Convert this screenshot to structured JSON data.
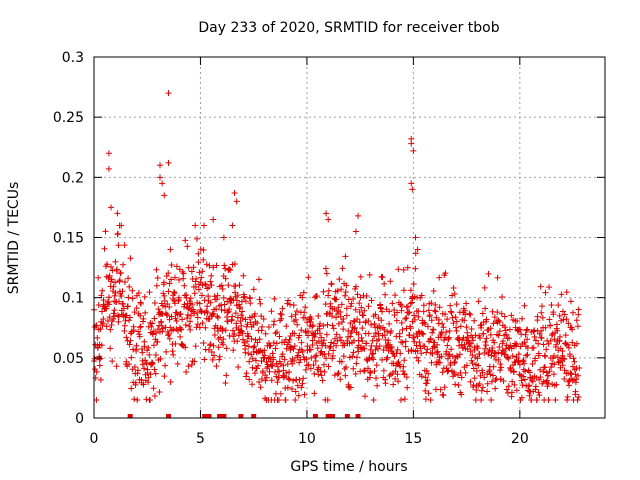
{
  "chart_data": {
    "type": "scatter",
    "title": "Day 233 of 2020, SRMTID for receiver tbob",
    "xlabel": "GPS time / hours",
    "ylabel": "SRMTID / TECUs",
    "xlim": [
      0,
      24
    ],
    "ylim": [
      0,
      0.3
    ],
    "x_ticks": [
      0,
      5,
      10,
      15,
      20
    ],
    "x_tick_labels": [
      "0",
      "5",
      "10",
      "15",
      "20"
    ],
    "y_ticks": [
      0,
      0.05,
      0.1,
      0.15,
      0.2,
      0.25,
      0.3
    ],
    "y_tick_labels": [
      "0",
      "0.05",
      "0.1",
      "0.15",
      "0.2",
      "0.25",
      "0.3"
    ],
    "grid": true,
    "marker": "+",
    "color": "#e00000",
    "x_range_of_data": [
      0,
      22.8
    ],
    "trend": {
      "x": [
        0,
        0.5,
        1.0,
        1.5,
        2.0,
        2.5,
        3.0,
        3.5,
        4.0,
        4.5,
        5.0,
        5.5,
        6.0,
        6.5,
        7.0,
        7.5,
        8.0,
        8.5,
        9.0,
        9.5,
        10.0,
        10.5,
        11.0,
        11.5,
        12.0,
        12.5,
        13.0,
        13.5,
        14.0,
        14.5,
        15.0,
        15.5,
        16.0,
        16.5,
        17.0,
        17.5,
        18.0,
        18.5,
        19.0,
        19.5,
        20.0,
        20.5,
        21.0,
        21.5,
        22.0,
        22.5,
        22.8
      ],
      "y": [
        0.05,
        0.09,
        0.1,
        0.09,
        0.05,
        0.05,
        0.07,
        0.09,
        0.08,
        0.09,
        0.1,
        0.09,
        0.08,
        0.09,
        0.07,
        0.06,
        0.05,
        0.05,
        0.05,
        0.06,
        0.06,
        0.07,
        0.07,
        0.08,
        0.07,
        0.07,
        0.06,
        0.07,
        0.06,
        0.06,
        0.09,
        0.06,
        0.06,
        0.07,
        0.06,
        0.06,
        0.06,
        0.06,
        0.06,
        0.05,
        0.05,
        0.04,
        0.05,
        0.06,
        0.05,
        0.05,
        0.05
      ]
    },
    "spread": 0.028,
    "outliers": [
      {
        "x": 0.7,
        "y": 0.22
      },
      {
        "x": 0.7,
        "y": 0.207
      },
      {
        "x": 0.8,
        "y": 0.175
      },
      {
        "x": 1.1,
        "y": 0.17
      },
      {
        "x": 1.2,
        "y": 0.16
      },
      {
        "x": 3.1,
        "y": 0.21
      },
      {
        "x": 3.1,
        "y": 0.2
      },
      {
        "x": 3.2,
        "y": 0.195
      },
      {
        "x": 3.5,
        "y": 0.27
      },
      {
        "x": 3.5,
        "y": 0.212
      },
      {
        "x": 3.3,
        "y": 0.185
      },
      {
        "x": 5.6,
        "y": 0.165
      },
      {
        "x": 6.1,
        "y": 0.15
      },
      {
        "x": 6.6,
        "y": 0.187
      },
      {
        "x": 6.7,
        "y": 0.18
      },
      {
        "x": 6.5,
        "y": 0.16
      },
      {
        "x": 10.9,
        "y": 0.17
      },
      {
        "x": 11.0,
        "y": 0.165
      },
      {
        "x": 12.4,
        "y": 0.168
      },
      {
        "x": 12.3,
        "y": 0.155
      },
      {
        "x": 14.9,
        "y": 0.232
      },
      {
        "x": 14.9,
        "y": 0.228
      },
      {
        "x": 15.0,
        "y": 0.222
      },
      {
        "x": 14.9,
        "y": 0.195
      },
      {
        "x": 14.95,
        "y": 0.19
      },
      {
        "x": 15.1,
        "y": 0.15
      },
      {
        "x": 15.2,
        "y": 0.14
      }
    ],
    "zero_markers_x": [
      1.7,
      3.5,
      5.2,
      5.4,
      5.9,
      6.0,
      6.1,
      6.9,
      7.5,
      10.4,
      11.0,
      11.2,
      11.9,
      12.4
    ]
  }
}
